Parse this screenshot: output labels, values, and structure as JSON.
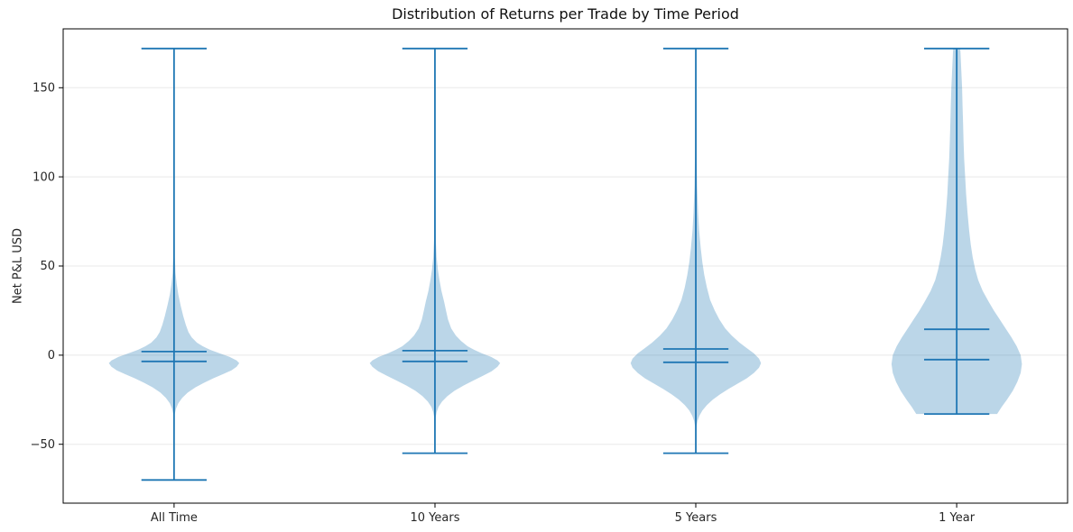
{
  "chart_data": {
    "type": "violin",
    "title": "Distribution of Returns per Trade by Time Period",
    "ylabel": "Net P&L USD",
    "xlabel": "",
    "categories": [
      "All Time",
      "10 Years",
      "5 Years",
      "1 Year"
    ],
    "y_ticks": [
      {
        "label": "150",
        "value": 150
      },
      {
        "label": "100",
        "value": 100
      },
      {
        "label": "50",
        "value": 50
      },
      {
        "label": "0",
        "value": 0
      },
      {
        "label": "−50",
        "value": -50
      }
    ],
    "ylim": [
      -83,
      183
    ],
    "xlim": [
      0.575,
      4.425
    ],
    "grid": "horizontal-only",
    "legend": "none",
    "series": [
      {
        "name": "All Time",
        "position": 1,
        "stats": {
          "max": 172,
          "min": -70,
          "mean": 2,
          "median": -3.5
        },
        "profile": [
          [
            172,
            0.005
          ],
          [
            80,
            0.007
          ],
          [
            55,
            0.012
          ],
          [
            46,
            0.022
          ],
          [
            40,
            0.04
          ],
          [
            34,
            0.065
          ],
          [
            28,
            0.1
          ],
          [
            22,
            0.14
          ],
          [
            17,
            0.18
          ],
          [
            13,
            0.22
          ],
          [
            10,
            0.27
          ],
          [
            7,
            0.35
          ],
          [
            5,
            0.44
          ],
          [
            3,
            0.55
          ],
          [
            1,
            0.7
          ],
          [
            -1,
            0.85
          ],
          [
            -3,
            0.96
          ],
          [
            -4.5,
            1.0
          ],
          [
            -6.5,
            0.96
          ],
          [
            -8.5,
            0.88
          ],
          [
            -10.5,
            0.76
          ],
          [
            -13,
            0.6
          ],
          [
            -15.5,
            0.46
          ],
          [
            -18,
            0.33
          ],
          [
            -21,
            0.21
          ],
          [
            -24,
            0.125
          ],
          [
            -27,
            0.065
          ],
          [
            -30,
            0.03
          ],
          [
            -33,
            0.012
          ],
          [
            -70,
            0.004
          ]
        ]
      },
      {
        "name": "10 Years",
        "position": 2,
        "stats": {
          "max": 172,
          "min": -55,
          "mean": 2.5,
          "median": -3.5
        },
        "profile": [
          [
            172,
            0.005
          ],
          [
            90,
            0.008
          ],
          [
            65,
            0.013
          ],
          [
            55,
            0.025
          ],
          [
            48,
            0.045
          ],
          [
            42,
            0.07
          ],
          [
            36,
            0.1
          ],
          [
            30,
            0.14
          ],
          [
            25,
            0.17
          ],
          [
            20,
            0.2
          ],
          [
            15,
            0.25
          ],
          [
            11,
            0.32
          ],
          [
            8,
            0.4
          ],
          [
            5,
            0.5
          ],
          [
            3,
            0.6
          ],
          [
            1,
            0.72
          ],
          [
            -1,
            0.86
          ],
          [
            -3,
            0.96
          ],
          [
            -4.5,
            1.0
          ],
          [
            -6.5,
            0.96
          ],
          [
            -9,
            0.87
          ],
          [
            -11.5,
            0.74
          ],
          [
            -14,
            0.6
          ],
          [
            -17,
            0.44
          ],
          [
            -20,
            0.3
          ],
          [
            -23,
            0.19
          ],
          [
            -26,
            0.11
          ],
          [
            -29,
            0.055
          ],
          [
            -32,
            0.025
          ],
          [
            -35,
            0.01
          ],
          [
            -55,
            0.004
          ]
        ]
      },
      {
        "name": "5 Years",
        "position": 3,
        "stats": {
          "max": 172,
          "min": -55,
          "mean": 3.5,
          "median": -4
        },
        "profile": [
          [
            172,
            0.006
          ],
          [
            115,
            0.012
          ],
          [
            95,
            0.02
          ],
          [
            80,
            0.035
          ],
          [
            70,
            0.05
          ],
          [
            60,
            0.075
          ],
          [
            52,
            0.1
          ],
          [
            45,
            0.13
          ],
          [
            38,
            0.17
          ],
          [
            31,
            0.22
          ],
          [
            25,
            0.29
          ],
          [
            20,
            0.36
          ],
          [
            15,
            0.45
          ],
          [
            11,
            0.55
          ],
          [
            7,
            0.67
          ],
          [
            4,
            0.78
          ],
          [
            1,
            0.89
          ],
          [
            -2,
            0.97
          ],
          [
            -4.5,
            1.0
          ],
          [
            -7,
            0.97
          ],
          [
            -10,
            0.89
          ],
          [
            -13,
            0.78
          ],
          [
            -16,
            0.64
          ],
          [
            -19,
            0.5
          ],
          [
            -22,
            0.37
          ],
          [
            -25,
            0.26
          ],
          [
            -28,
            0.17
          ],
          [
            -31,
            0.1
          ],
          [
            -34,
            0.055
          ],
          [
            -37,
            0.025
          ],
          [
            -40,
            0.01
          ],
          [
            -55,
            0.004
          ]
        ]
      },
      {
        "name": "1 Year",
        "position": 4,
        "stats": {
          "max": 172,
          "min": -33,
          "mean": 14.5,
          "median": -2.5
        },
        "profile": [
          [
            172,
            0.055
          ],
          [
            160,
            0.07
          ],
          [
            150,
            0.082
          ],
          [
            140,
            0.09
          ],
          [
            130,
            0.098
          ],
          [
            120,
            0.105
          ],
          [
            110,
            0.115
          ],
          [
            100,
            0.13
          ],
          [
            90,
            0.145
          ],
          [
            80,
            0.165
          ],
          [
            70,
            0.19
          ],
          [
            62,
            0.215
          ],
          [
            55,
            0.245
          ],
          [
            48,
            0.285
          ],
          [
            42,
            0.33
          ],
          [
            36,
            0.4
          ],
          [
            30,
            0.49
          ],
          [
            25,
            0.57
          ],
          [
            20,
            0.66
          ],
          [
            15,
            0.75
          ],
          [
            10,
            0.84
          ],
          [
            5,
            0.92
          ],
          [
            0,
            0.98
          ],
          [
            -5,
            1.0
          ],
          [
            -10,
            0.98
          ],
          [
            -15,
            0.93
          ],
          [
            -20,
            0.86
          ],
          [
            -25,
            0.77
          ],
          [
            -29,
            0.69
          ],
          [
            -33,
            0.62
          ]
        ]
      }
    ],
    "style": {
      "violin_color": "#1f77b4",
      "violin_fill_opacity": 0.3,
      "line_color": "#1f77b4",
      "stat_line_width": 1.8,
      "grid_color": "#e8e8e8",
      "spine_color": "#000000",
      "tick_color": "#000000",
      "text_color": "#262626",
      "background": "#ffffff",
      "violin_halfwidth": 0.25,
      "cap_halfwidth": 0.125
    }
  }
}
